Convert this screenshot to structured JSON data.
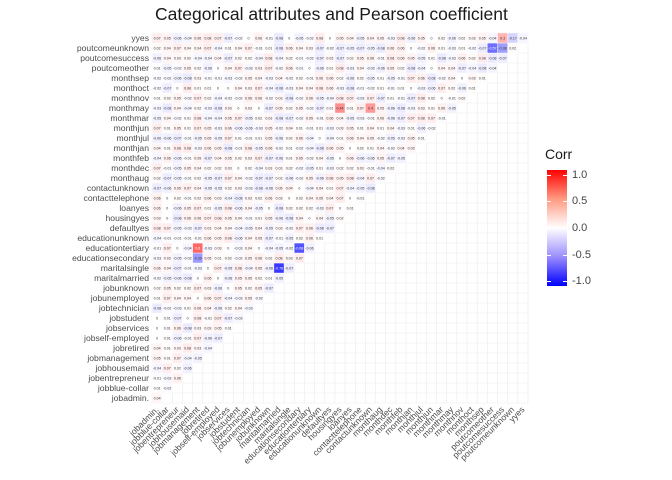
{
  "chart_data": {
    "type": "heatmap",
    "title": "Categorical attributes and Pearson coefficient",
    "xlabel": "",
    "ylabel": "",
    "layout": "lower-triangle correlation matrix; y axis listed bottom-to-top, x axis left-to-right",
    "variables": [
      "jobadmin.",
      "jobblue-collar",
      "jobentrepreneur",
      "jobhousemaid",
      "jobmanagement",
      "jobretired",
      "jobself-employed",
      "jobservices",
      "jobstudent",
      "jobtechnician",
      "jobunemployed",
      "jobunknown",
      "maritalmarried",
      "maritalsingle",
      "educationsecondary",
      "educationtertiary",
      "educationunknown",
      "defaultyes",
      "housingyes",
      "loanyes",
      "contacttelephone",
      "contactunknown",
      "monthaug",
      "monthdec",
      "monthfeb",
      "monthjan",
      "monthjul",
      "monthjun",
      "monthmar",
      "monthmay",
      "monthnov",
      "monthoct",
      "monthsep",
      "poutcomeother",
      "poutcomesuccess",
      "poutcomeunknown",
      "yyes"
    ],
    "legend": {
      "title": "Corr",
      "ticks": [
        "1.0",
        "0.5",
        "0.0",
        "-0.5",
        "-1.0"
      ],
      "range": [
        -1,
        1
      ],
      "colors": {
        "high": "#ff0000",
        "mid": "#ffffff",
        "low": "#0000ff"
      },
      "placement": "right"
    },
    "highlighted_values": [
      {
        "row": "poutcomeunknown",
        "col": "poutcomeother",
        "value": -0.57
      },
      {
        "row": "poutcomeunknown",
        "col": "poutcomesuccess",
        "value": -0.38
      },
      {
        "row": "maritalsingle",
        "col": "maritalmarried",
        "value": -0.78
      },
      {
        "row": "educationtertiary",
        "col": "educationsecondary",
        "value": -0.68
      },
      {
        "row": "jobmanagement",
        "col": "educationsecondary",
        "value": -0.39
      },
      {
        "row": "educationtertiary",
        "col": "jobmanagement",
        "value": 0.6
      },
      {
        "row": "monthmay",
        "col": "housingyes",
        "value": 0.44
      },
      {
        "row": "yyes",
        "col": "poutcomesuccess",
        "value": 0.3
      },
      {
        "row": "yyes",
        "col": "poutcomeunknown",
        "value": -0.17
      },
      {
        "row": "contactunknown",
        "col": "monthmay",
        "value": 0.4
      },
      {
        "row": "poutcomeother",
        "col": "poutcomesuccess",
        "value": -0.08
      }
    ],
    "default_value_note": "other cells are near zero (|r| < 0.2)"
  }
}
